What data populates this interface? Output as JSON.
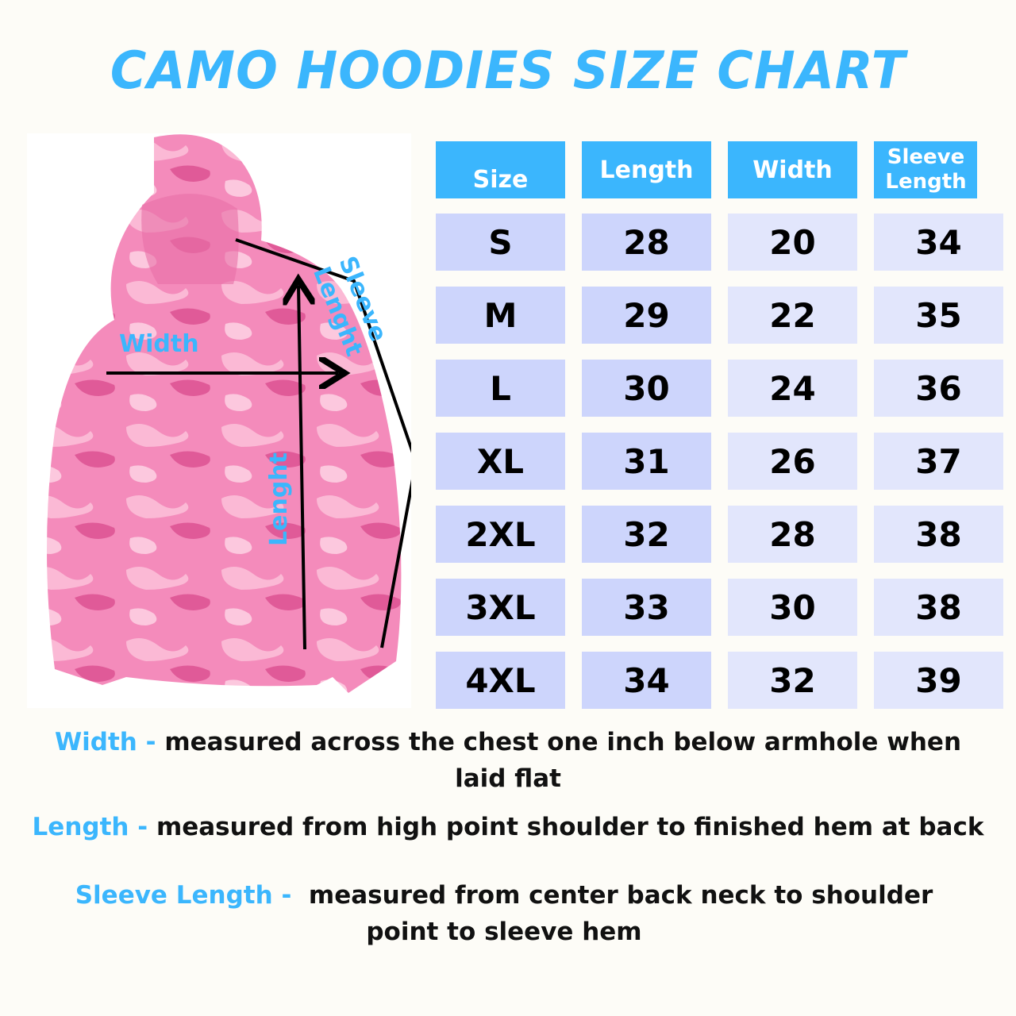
{
  "title": "Camo Hoodies Size Chart",
  "diagram": {
    "width_label": "Width",
    "length_label": "Lenght",
    "sleeve_label": "Sleeve Lenght"
  },
  "table": {
    "headers": [
      "Size",
      "Length",
      "Width",
      "Sleeve Length"
    ],
    "rows": [
      [
        "S",
        "28",
        "20",
        "34"
      ],
      [
        "M",
        "29",
        "22",
        "35"
      ],
      [
        "L",
        "30",
        "24",
        "36"
      ],
      [
        "XL",
        "31",
        "26",
        "37"
      ],
      [
        "2XL",
        "32",
        "28",
        "38"
      ],
      [
        "3XL",
        "33",
        "30",
        "38"
      ],
      [
        "4XL",
        "34",
        "32",
        "39"
      ]
    ]
  },
  "notes": [
    {
      "key": "Width -",
      "text": "measured across the chest one inch below armhole when laid flat"
    },
    {
      "key": "Length -",
      "text": "measured from high point shoulder to finished hem at back"
    },
    {
      "key": "Sleeve Length -",
      "text": " measured from center back neck to shoulder point to sleeve hem"
    }
  ],
  "colors": {
    "accent": "#3bb6fd",
    "cell_dark": "#cdd5fc",
    "cell_light": "#e2e6fc",
    "background": "#fdfcf7",
    "hoodie": "#f27ab0"
  }
}
